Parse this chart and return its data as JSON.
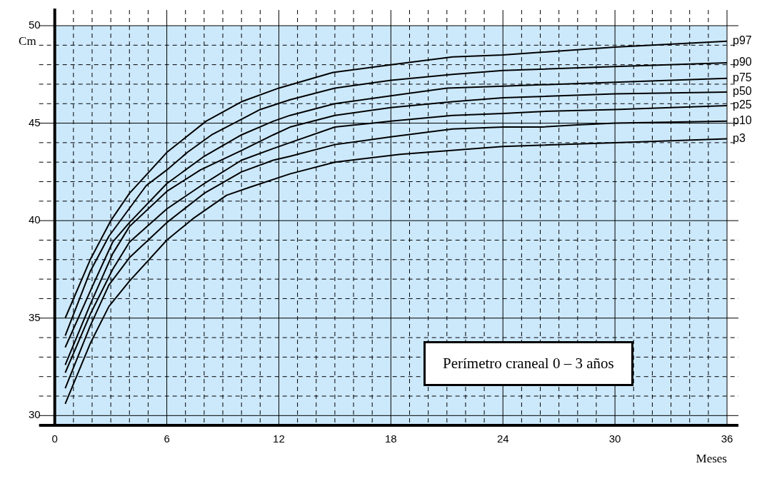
{
  "chart_data": {
    "type": "line",
    "xlabel": "Meses",
    "ylabel": "Cm",
    "xlim": [
      0,
      36
    ],
    "ylim": [
      29.5,
      50
    ],
    "xticks": [
      0,
      {
        "value": 1,
        "label": null
      },
      {
        "value": 2,
        "label": null
      },
      {
        "value": 3,
        "label": null
      },
      {
        "value": 4,
        "label": null
      },
      {
        "value": 5,
        "label": null
      },
      6,
      {
        "value": 7,
        "label": null
      },
      {
        "value": 8,
        "label": null
      },
      {
        "value": 9,
        "label": null
      },
      {
        "value": 10,
        "label": null
      },
      {
        "value": 11,
        "label": null
      },
      12,
      {
        "value": 13,
        "label": null
      },
      {
        "value": 14,
        "label": null
      },
      {
        "value": 15,
        "label": null
      },
      {
        "value": 16,
        "label": null
      },
      {
        "value": 17,
        "label": null
      },
      18,
      {
        "value": 19,
        "label": null
      },
      {
        "value": 20,
        "label": null
      },
      {
        "value": 21,
        "label": null
      },
      {
        "value": 22,
        "label": null
      },
      {
        "value": 23,
        "label": null
      },
      24,
      {
        "value": 25,
        "label": null
      },
      {
        "value": 26,
        "label": null
      },
      {
        "value": 27,
        "label": null
      },
      {
        "value": 28,
        "label": null
      },
      {
        "value": 29,
        "label": null
      },
      30,
      {
        "value": 31,
        "label": null
      },
      {
        "value": 32,
        "label": null
      },
      {
        "value": 33,
        "label": null
      },
      {
        "value": 34,
        "label": null
      },
      {
        "value": 35,
        "label": null
      },
      36
    ],
    "yticks": [
      30,
      {
        "value": 31,
        "label": null
      },
      {
        "value": 32,
        "label": null
      },
      {
        "value": 33,
        "label": null
      },
      {
        "value": 34,
        "label": null
      },
      35,
      {
        "value": 36,
        "label": null
      },
      {
        "value": 37,
        "label": null
      },
      {
        "value": 38,
        "label": null
      },
      {
        "value": 39,
        "label": null
      },
      40,
      {
        "value": 41,
        "label": null
      },
      {
        "value": 42,
        "label": null
      },
      {
        "value": 43,
        "label": null
      },
      {
        "value": 44,
        "label": null
      },
      45,
      {
        "value": 46,
        "label": null
      },
      {
        "value": 47,
        "label": null
      },
      {
        "value": 48,
        "label": null
      },
      {
        "value": 49,
        "label": null
      },
      50
    ],
    "grid": true,
    "legend": false,
    "marker": "none",
    "line_style": "solid",
    "annotations": [
      "Perímetro craneal  0 – 3 años"
    ],
    "series": [
      {
        "name": "p97",
        "color": "#000000",
        "x": [
          0.56,
          1.9,
          3,
          4,
          6,
          8.1,
          10,
          12,
          14.9,
          18,
          21.3,
          24,
          30,
          36
        ],
        "values": [
          35,
          38,
          40,
          41.4,
          43.5,
          45.1,
          46.1,
          46.8,
          47.6,
          48,
          48.4,
          48.5,
          48.9,
          49.2
        ]
      },
      {
        "name": "p90",
        "color": "#000000",
        "x": [
          0.56,
          1.9,
          2.9,
          4.9,
          6,
          7.1,
          8.4,
          10,
          11,
          12.6,
          15,
          18,
          21.3,
          24,
          30,
          36
        ],
        "values": [
          34.1,
          37.4,
          39.2,
          41.8,
          42.6,
          43.5,
          44.4,
          45.2,
          45.7,
          46.2,
          46.8,
          47.2,
          47.5,
          47.7,
          47.9,
          48.1
        ]
      },
      {
        "name": "p75",
        "color": "#000000",
        "x": [
          0.56,
          2,
          3.1,
          4,
          6,
          8,
          10,
          11.7,
          12.6,
          15,
          18,
          21,
          24,
          30,
          36
        ],
        "values": [
          33.5,
          36.6,
          38.9,
          39.9,
          41.9,
          43.3,
          44.4,
          45.1,
          45.4,
          46,
          46.4,
          46.8,
          46.9,
          47.1,
          47.3
        ]
      },
      {
        "name": "p50",
        "color": "#000000",
        "x": [
          0.56,
          1.9,
          3.1,
          4,
          6,
          7.8,
          10,
          11.7,
          12.6,
          15,
          18,
          21.3,
          24,
          30,
          36
        ],
        "values": [
          32.6,
          35.7,
          38.3,
          39.7,
          41.5,
          42.6,
          43.6,
          44.4,
          44.8,
          45.4,
          45.8,
          46.1,
          46.3,
          46.5,
          46.6
        ]
      },
      {
        "name": "p25",
        "color": "#000000",
        "x": [
          0.56,
          1.9,
          3.1,
          4,
          6,
          8,
          10,
          11.7,
          12.6,
          15,
          18,
          21.3,
          24,
          26.1,
          30,
          36
        ],
        "values": [
          32.2,
          35.2,
          37.5,
          38.9,
          40.6,
          41.9,
          43.1,
          43.7,
          44,
          44.8,
          45.1,
          45.4,
          45.5,
          45.6,
          45.7,
          45.9
        ]
      },
      {
        "name": "p10",
        "color": "#000000",
        "x": [
          0.56,
          1.9,
          2.9,
          4,
          6,
          8,
          10,
          11.7,
          12.6,
          15,
          18,
          21.3,
          24,
          26.1,
          27.8,
          30,
          36
        ],
        "values": [
          31.4,
          34.6,
          36.7,
          38.1,
          39.9,
          41.4,
          42.5,
          43.1,
          43.3,
          43.9,
          44.3,
          44.7,
          44.8,
          44.8,
          44.9,
          45,
          45.1
        ]
      },
      {
        "name": "p3",
        "color": "#000000",
        "x": [
          0.56,
          1.9,
          2.9,
          4,
          6,
          7.4,
          9.2,
          10.4,
          12.6,
          15,
          18.5,
          24,
          30,
          36
        ],
        "values": [
          30.6,
          33.7,
          35.6,
          36.9,
          39,
          40.1,
          41.3,
          41.7,
          42.4,
          43,
          43.4,
          43.8,
          44,
          44.2
        ]
      }
    ]
  }
}
